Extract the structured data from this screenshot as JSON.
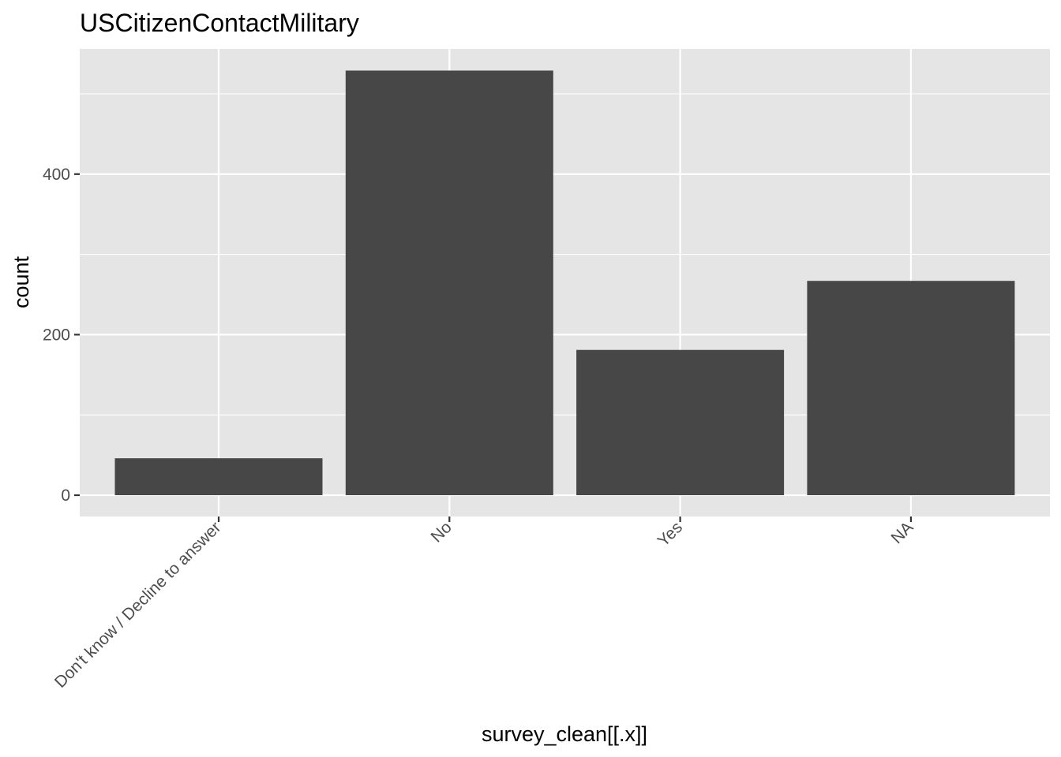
{
  "chart_data": {
    "type": "bar",
    "title": "USCitizenContactMilitary",
    "xlabel": "survey_clean[[.x]]",
    "ylabel": "count",
    "categories": [
      "Don't know / Decline to answer",
      "No",
      "Yes",
      "NA"
    ],
    "values": [
      46,
      529,
      181,
      267
    ],
    "ylim": [
      0,
      556
    ],
    "yticks": [
      0,
      200,
      400
    ],
    "grid": true,
    "colors": {
      "panel_background": "#e5e5e5",
      "grid": "#ffffff",
      "bar_fill": "#474747",
      "tick_text": "#4d4d4d",
      "tick_mark": "#333333"
    }
  }
}
